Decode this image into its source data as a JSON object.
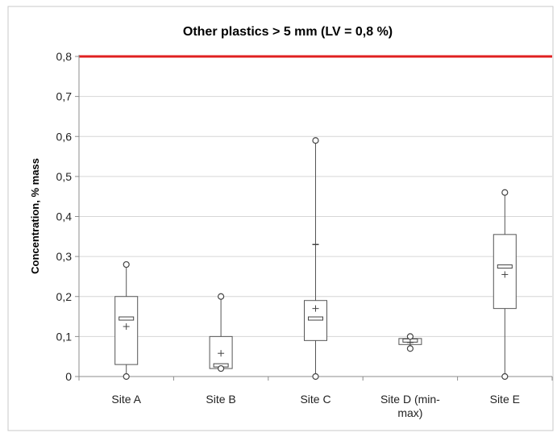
{
  "chart_data": {
    "type": "boxplot",
    "title": "Other plastics > 5 mm (LV = 0,8 %)",
    "xlabel": "",
    "ylabel": "Concentration, % mass",
    "ylim": [
      0,
      0.8
    ],
    "yticks": [
      0,
      0.1,
      0.2,
      0.3,
      0.4,
      0.5,
      0.6,
      0.7,
      0.8
    ],
    "ytick_labels": [
      "0",
      "0,1",
      "0,2",
      "0,3",
      "0,4",
      "0,5",
      "0,6",
      "0,7",
      "0,8"
    ],
    "grid": true,
    "limit_line": {
      "value": 0.8,
      "color": "#e02020"
    },
    "categories": [
      {
        "label_lines": [
          "Site A"
        ],
        "min": 0,
        "q1": 0.03,
        "median": 0.145,
        "mean": 0.125,
        "q3": 0.2,
        "max": 0.28
      },
      {
        "label_lines": [
          "Site B"
        ],
        "min": 0.02,
        "q1": 0.02,
        "median": 0.028,
        "mean": 0.058,
        "q3": 0.1,
        "max": 0.2
      },
      {
        "label_lines": [
          "Site C"
        ],
        "min": 0,
        "q1": 0.09,
        "median": 0.145,
        "mean": 0.17,
        "q3": 0.19,
        "max": 0.59,
        "extra_marks": [
          0.33
        ]
      },
      {
        "label_lines": [
          "Site D (min-",
          "max)"
        ],
        "min": 0.07,
        "q1": 0.08,
        "median": 0.09,
        "mean": 0.085,
        "q3": 0.095,
        "max": 0.1
      },
      {
        "label_lines": [
          "Site E"
        ],
        "min": 0,
        "q1": 0.17,
        "median": 0.275,
        "mean": 0.255,
        "q3": 0.355,
        "max": 0.46
      }
    ]
  }
}
